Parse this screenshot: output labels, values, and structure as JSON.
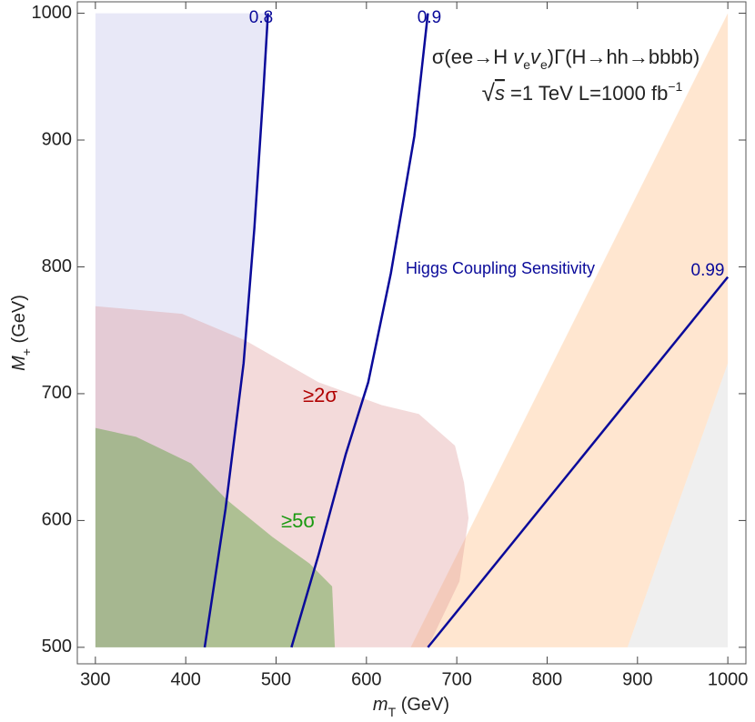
{
  "chart_data": {
    "type": "contour",
    "xlabel": {
      "parts": [
        "m",
        "T",
        " (GeV)"
      ]
    },
    "ylabel": {
      "parts": [
        "M",
        "+",
        " (GeV)"
      ]
    },
    "process": {
      "parts": [
        "σ(ee→H ",
        "v",
        "e",
        "v",
        "e",
        ")Γ(H→hh→bbbb)"
      ]
    },
    "energy": {
      "parts": [
        "√",
        "s",
        " =1 TeV    L=1000 fb",
        "−1"
      ]
    },
    "annotation": "Higgs Coupling Sensitivity",
    "xlim": [
      280,
      1020
    ],
    "ylim": [
      487,
      1009
    ],
    "xticks": [
      300,
      400,
      500,
      600,
      700,
      800,
      900,
      1000
    ],
    "yticks": [
      500,
      600,
      700,
      800,
      900,
      1000
    ],
    "regions": [
      {
        "color": "#efefef",
        "x": [
          889,
          1000,
          1000
        ],
        "y": [
          500,
          724,
          500
        ]
      },
      {
        "color": "#ffc896",
        "x": [
          649,
          1000,
          1000,
          889
        ],
        "y": [
          500,
          1000,
          724,
          500
        ]
      },
      {
        "color": "#b4b4e6",
        "x": [
          300,
          421,
          444,
          464,
          476,
          486,
          491,
          300
        ],
        "y": [
          500,
          500,
          609,
          724,
          831,
          939,
          1000,
          1000
        ]
      },
      {
        "name": "≥2σ",
        "color": "#dc9696",
        "x": [
          300,
          396,
          466,
          547,
          617,
          658,
          698,
          708,
          713,
          703,
          668,
          300
        ],
        "y": [
          769,
          763,
          742,
          709,
          691,
          684,
          659,
          630,
          602,
          552,
          500,
          500
        ]
      },
      {
        "name": "≥5σ",
        "color": "#5aa03c",
        "x": [
          300,
          345,
          406,
          446,
          496,
          537,
          562,
          565,
          300
        ],
        "y": [
          673,
          666,
          645,
          616,
          587,
          566,
          548,
          500,
          500
        ]
      }
    ],
    "contours": [
      {
        "name": "0.8",
        "color": "#0a0a9a",
        "x": [
          421,
          444,
          464,
          476,
          486,
          491
        ],
        "y": [
          500,
          609,
          724,
          831,
          939,
          1000
        ]
      },
      {
        "name": "0.9",
        "color": "#0a0a9a",
        "x": [
          517,
          547,
          577,
          602,
          627,
          653,
          668
        ],
        "y": [
          500,
          573,
          652,
          709,
          795,
          903,
          1000
        ]
      },
      {
        "name": "0.99",
        "color": "#0a0a9a",
        "x": [
          668,
          834,
          1000
        ],
        "y": [
          500,
          646,
          792
        ]
      }
    ]
  }
}
